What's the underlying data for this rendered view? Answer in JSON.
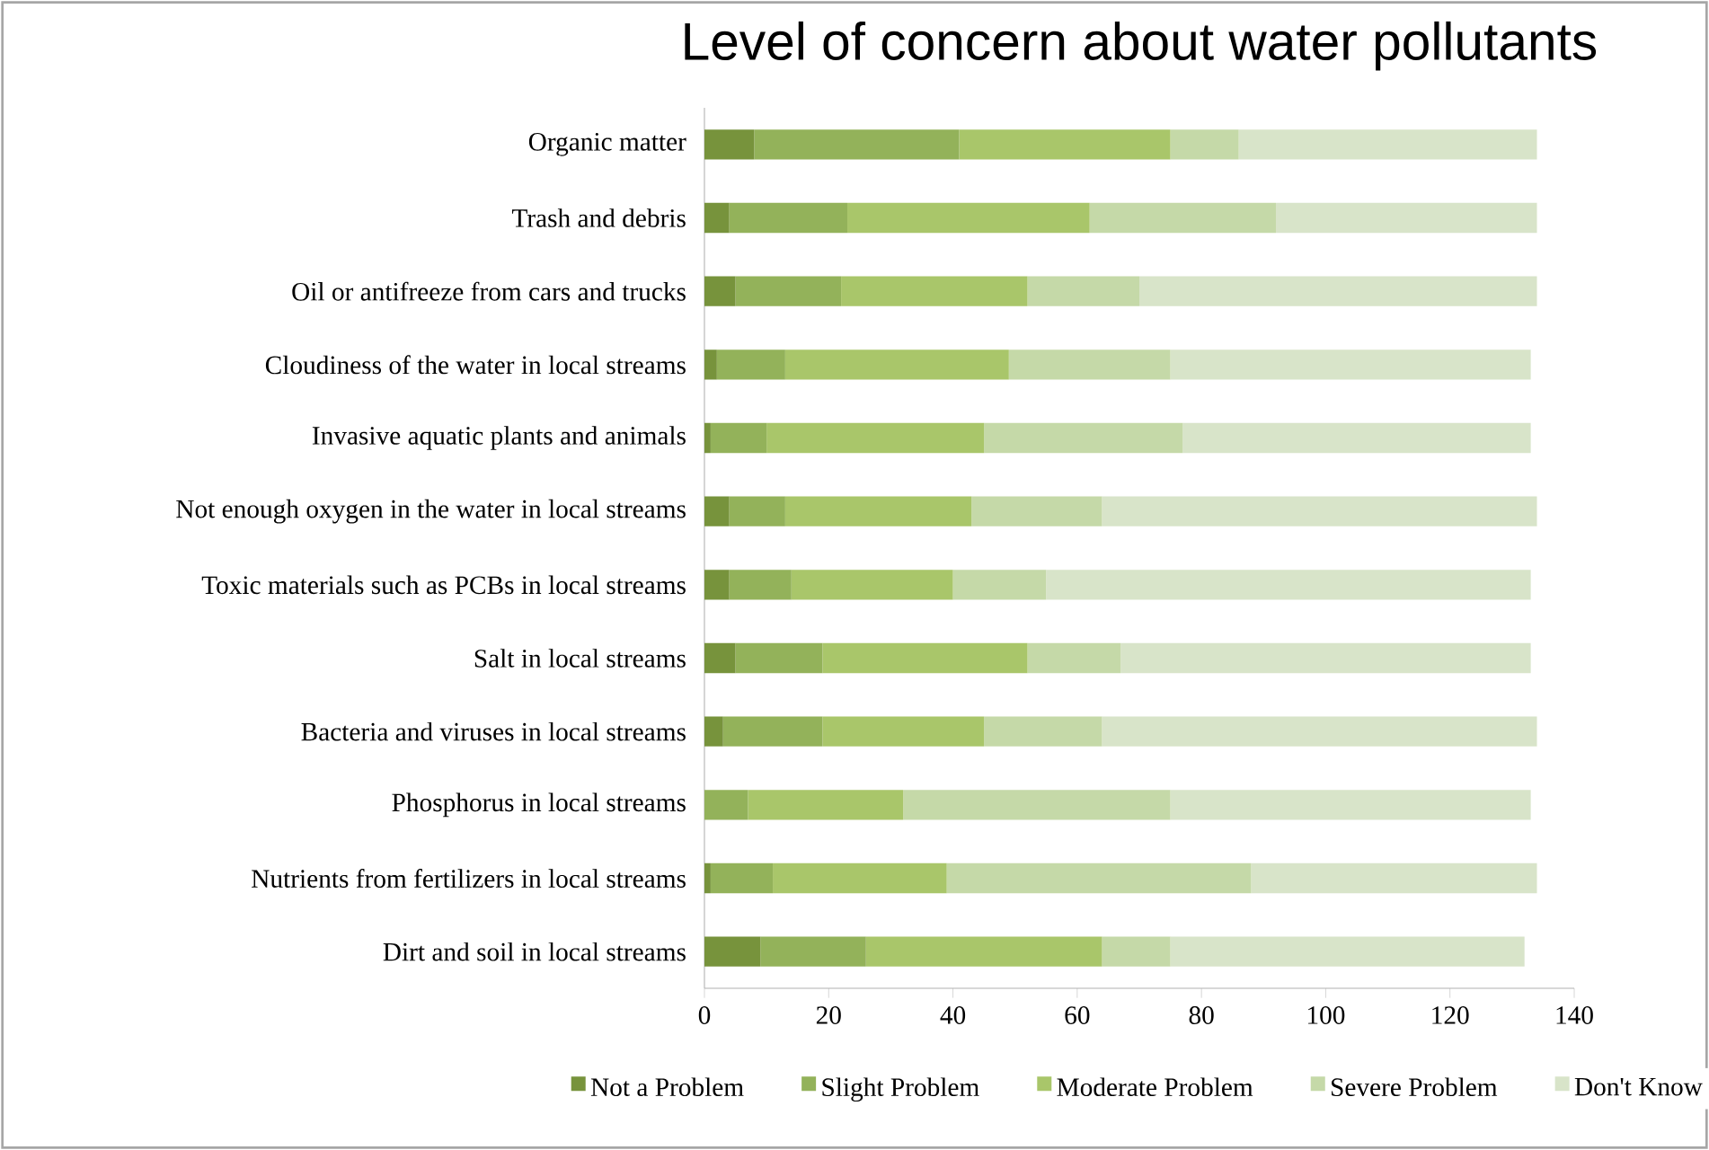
{
  "chart_data": {
    "type": "bar",
    "orientation": "horizontal",
    "stacked": true,
    "title": "Level of concern about water pollutants",
    "categories": [
      "Organic matter",
      "Trash and debris",
      "Oil or antifreeze from cars and trucks",
      "Cloudiness of the water in local streams",
      "Invasive aquatic plants and animals",
      "Not enough oxygen in the water in local streams",
      "Toxic materials such as PCBs in local streams",
      "Salt in local streams",
      "Bacteria and viruses in local streams",
      "Phosphorus in local streams",
      "Nutrients from fertilizers in local streams",
      "Dirt and soil in local streams"
    ],
    "series": [
      {
        "name": "Not a Problem",
        "color": "#77933c",
        "values": [
          8,
          4,
          5,
          2,
          1,
          4,
          4,
          5,
          3,
          0,
          1,
          9
        ]
      },
      {
        "name": "Slight Problem",
        "color": "#93b25a",
        "values": [
          33,
          19,
          17,
          11,
          9,
          9,
          10,
          14,
          16,
          7,
          10,
          17
        ]
      },
      {
        "name": "Moderate Problem",
        "color": "#a9c66a",
        "values": [
          34,
          39,
          30,
          36,
          35,
          30,
          26,
          33,
          26,
          25,
          28,
          38
        ]
      },
      {
        "name": "Severe Problem",
        "color": "#c5d9a8",
        "values": [
          11,
          30,
          18,
          26,
          32,
          21,
          15,
          15,
          19,
          43,
          49,
          11
        ]
      },
      {
        "name": "Don't Know",
        "color": "#d8e4c9",
        "values": [
          48,
          42,
          64,
          58,
          56,
          70,
          78,
          66,
          70,
          58,
          46,
          57
        ]
      }
    ],
    "xlim": [
      0,
      140
    ],
    "xticks": [
      0,
      20,
      40,
      60,
      80,
      100,
      120,
      140
    ],
    "legend": "bottom"
  }
}
